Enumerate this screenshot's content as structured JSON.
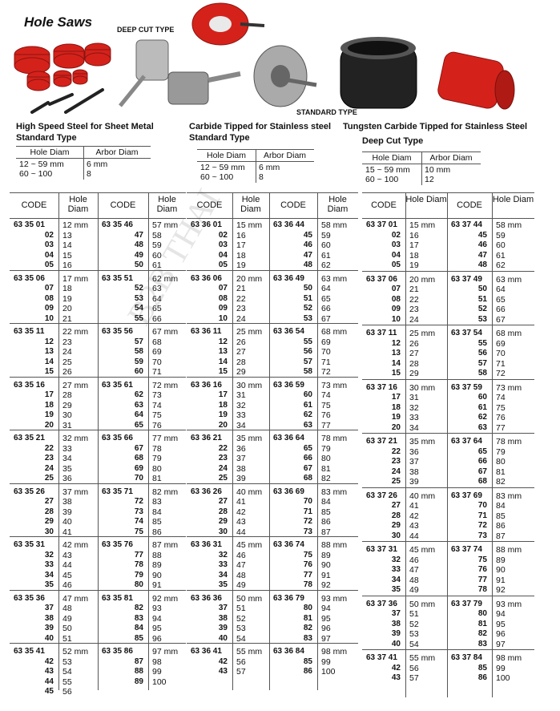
{
  "header": {
    "title": "Hole Saws"
  },
  "image_labels": {
    "deep_cut": "DEEP CUT TYPE",
    "standard": "STANDARD TYPE"
  },
  "watermark": "B2B THAI",
  "sections": [
    {
      "heading": [
        "High Speed Steel for Sheet Metal",
        "Standard Type"
      ],
      "spec": {
        "columns": [
          "Hole Diam",
          "Arbor Diam"
        ],
        "rows": [
          [
            "12 ~ 59 mm",
            "6 mm"
          ],
          [
            "60 ~ 100",
            "8"
          ]
        ]
      },
      "table": {
        "columns": [
          "CODE",
          "Hole Diam",
          "CODE",
          "Hole Diam"
        ],
        "groups": [
          [
            [
              "63 35 01",
              "12 mm",
              "63 35 46",
              "57 mm"
            ],
            [
              "02",
              "13",
              "47",
              "58"
            ],
            [
              "03",
              "14",
              "48",
              "59"
            ],
            [
              "04",
              "15",
              "49",
              "60"
            ],
            [
              "05",
              "16",
              "50",
              "61"
            ]
          ],
          [
            [
              "63 35 06",
              "17 mm",
              "63 35 51",
              "62 mm"
            ],
            [
              "07",
              "18",
              "52",
              "63"
            ],
            [
              "08",
              "19",
              "53",
              "64"
            ],
            [
              "09",
              "20",
              "54",
              "65"
            ],
            [
              "10",
              "21",
              "55",
              "66"
            ]
          ],
          [
            [
              "63 35 11",
              "22 mm",
              "63 35 56",
              "67 mm"
            ],
            [
              "12",
              "23",
              "57",
              "68"
            ],
            [
              "13",
              "24",
              "58",
              "69"
            ],
            [
              "14",
              "25",
              "59",
              "70"
            ],
            [
              "15",
              "26",
              "60",
              "71"
            ]
          ],
          [
            [
              "63 35 16",
              "27 mm",
              "63 35 61",
              "72 mm"
            ],
            [
              "17",
              "28",
              "62",
              "73"
            ],
            [
              "18",
              "29",
              "63",
              "74"
            ],
            [
              "19",
              "30",
              "64",
              "75"
            ],
            [
              "20",
              "31",
              "65",
              "76"
            ]
          ],
          [
            [
              "63 35 21",
              "32 mm",
              "63 35 66",
              "77 mm"
            ],
            [
              "22",
              "33",
              "67",
              "78"
            ],
            [
              "23",
              "34",
              "68",
              "79"
            ],
            [
              "24",
              "35",
              "69",
              "80"
            ],
            [
              "25",
              "36",
              "70",
              "81"
            ]
          ],
          [
            [
              "63 35 26",
              "37 mm",
              "63 35 71",
              "82 mm"
            ],
            [
              "27",
              "38",
              "72",
              "83"
            ],
            [
              "28",
              "39",
              "73",
              "84"
            ],
            [
              "29",
              "40",
              "74",
              "85"
            ],
            [
              "30",
              "41",
              "75",
              "86"
            ]
          ],
          [
            [
              "63 35 31",
              "42 mm",
              "63 35 76",
              "87 mm"
            ],
            [
              "32",
              "43",
              "77",
              "88"
            ],
            [
              "33",
              "44",
              "78",
              "89"
            ],
            [
              "34",
              "45",
              "79",
              "90"
            ],
            [
              "35",
              "46",
              "80",
              "91"
            ]
          ],
          [
            [
              "63 35 36",
              "47 mm",
              "63 35 81",
              "92 mm"
            ],
            [
              "37",
              "48",
              "82",
              "93"
            ],
            [
              "38",
              "49",
              "83",
              "94"
            ],
            [
              "39",
              "50",
              "84",
              "95"
            ],
            [
              "40",
              "51",
              "85",
              "96"
            ]
          ],
          [
            [
              "63 35 41",
              "52 mm",
              "63 35 86",
              "97 mm"
            ],
            [
              "42",
              "53",
              "87",
              "98"
            ],
            [
              "43",
              "54",
              "88",
              "99"
            ],
            [
              "44",
              "55",
              "89",
              "100"
            ],
            [
              "45",
              "56",
              null,
              null
            ]
          ]
        ]
      }
    },
    {
      "heading": [
        "Carbide Tipped for Stainless steel",
        "Standard Type"
      ],
      "spec": {
        "columns": [
          "Hole Diam",
          "Arbor Diam"
        ],
        "rows": [
          [
            "12 ~ 59 mm",
            "6 mm"
          ],
          [
            "60 ~ 100",
            "8"
          ]
        ]
      },
      "table": {
        "columns": [
          "CODE",
          "Hole Diam",
          "CODE",
          "Hole Diam"
        ],
        "groups": [
          [
            [
              "63 36 01",
              "15 mm",
              "63 36 44",
              "58 mm"
            ],
            [
              "02",
              "16",
              "45",
              "59"
            ],
            [
              "03",
              "17",
              "46",
              "60"
            ],
            [
              "04",
              "18",
              "47",
              "61"
            ],
            [
              "05",
              "19",
              "48",
              "62"
            ]
          ],
          [
            [
              "63 36 06",
              "20 mm",
              "63 36 49",
              "63 mm"
            ],
            [
              "07",
              "21",
              "50",
              "64"
            ],
            [
              "08",
              "22",
              "51",
              "65"
            ],
            [
              "09",
              "23",
              "52",
              "66"
            ],
            [
              "10",
              "24",
              "53",
              "67"
            ]
          ],
          [
            [
              "63 36 11",
              "25 mm",
              "63 36 54",
              "68 mm"
            ],
            [
              "12",
              "26",
              "55",
              "69"
            ],
            [
              "13",
              "27",
              "56",
              "70"
            ],
            [
              "14",
              "28",
              "57",
              "71"
            ],
            [
              "15",
              "29",
              "58",
              "72"
            ]
          ],
          [
            [
              "63 36 16",
              "30 mm",
              "63 36 59",
              "73 mm"
            ],
            [
              "17",
              "31",
              "60",
              "74"
            ],
            [
              "18",
              "32",
              "61",
              "75"
            ],
            [
              "19",
              "33",
              "62",
              "76"
            ],
            [
              "20",
              "34",
              "63",
              "77"
            ]
          ],
          [
            [
              "63 36 21",
              "35 mm",
              "63 36 64",
              "78 mm"
            ],
            [
              "22",
              "36",
              "65",
              "79"
            ],
            [
              "23",
              "37",
              "66",
              "80"
            ],
            [
              "24",
              "38",
              "67",
              "81"
            ],
            [
              "25",
              "39",
              "68",
              "82"
            ]
          ],
          [
            [
              "63 36 26",
              "40 mm",
              "63 36 69",
              "83 mm"
            ],
            [
              "27",
              "41",
              "70",
              "84"
            ],
            [
              "28",
              "42",
              "71",
              "85"
            ],
            [
              "29",
              "43",
              "72",
              "86"
            ],
            [
              "30",
              "44",
              "73",
              "87"
            ]
          ],
          [
            [
              "63 36 31",
              "45 mm",
              "63 36 74",
              "88 mm"
            ],
            [
              "32",
              "46",
              "75",
              "89"
            ],
            [
              "33",
              "47",
              "76",
              "90"
            ],
            [
              "34",
              "48",
              "77",
              "91"
            ],
            [
              "35",
              "49",
              "78",
              "92"
            ]
          ],
          [
            [
              "63 36 36",
              "50 mm",
              "63 36 79",
              "93 mm"
            ],
            [
              "37",
              "51",
              "80",
              "94"
            ],
            [
              "38",
              "52",
              "81",
              "95"
            ],
            [
              "39",
              "53",
              "82",
              "96"
            ],
            [
              "40",
              "54",
              "83",
              "97"
            ]
          ],
          [
            [
              "63 36 41",
              "55 mm",
              "63 36 84",
              "98 mm"
            ],
            [
              "42",
              "56",
              "85",
              "99"
            ],
            [
              "43",
              "57",
              "86",
              "100"
            ]
          ]
        ]
      }
    },
    {
      "heading": [
        "Tungsten Carbide Tipped for Stainless Steel",
        "Deep Cut Type"
      ],
      "spec": {
        "columns": [
          "Hole Diam",
          "Arbor Diam"
        ],
        "rows": [
          [
            "15 ~ 59 mm",
            "10 mm"
          ],
          [
            "60 ~ 100",
            "12"
          ]
        ]
      },
      "table": {
        "columns": [
          "CODE",
          "Hole Diam",
          "CODE",
          "Hole Diam"
        ],
        "groups": [
          [
            [
              "63 37 01",
              "15 mm",
              "63 37 44",
              "58 mm"
            ],
            [
              "02",
              "16",
              "45",
              "59"
            ],
            [
              "03",
              "17",
              "46",
              "60"
            ],
            [
              "04",
              "18",
              "47",
              "61"
            ],
            [
              "05",
              "19",
              "48",
              "62"
            ]
          ],
          [
            [
              "63 37 06",
              "20 mm",
              "63 37 49",
              "63 mm"
            ],
            [
              "07",
              "21",
              "50",
              "64"
            ],
            [
              "08",
              "22",
              "51",
              "65"
            ],
            [
              "09",
              "23",
              "52",
              "66"
            ],
            [
              "10",
              "24",
              "53",
              "67"
            ]
          ],
          [
            [
              "63 37 11",
              "25 mm",
              "63 37 54",
              "68 mm"
            ],
            [
              "12",
              "26",
              "55",
              "69"
            ],
            [
              "13",
              "27",
              "56",
              "70"
            ],
            [
              "14",
              "28",
              "57",
              "71"
            ],
            [
              "15",
              "29",
              "58",
              "72"
            ]
          ],
          [
            [
              "63 37 16",
              "30 mm",
              "63 37 59",
              "73 mm"
            ],
            [
              "17",
              "31",
              "60",
              "74"
            ],
            [
              "18",
              "32",
              "61",
              "75"
            ],
            [
              "19",
              "33",
              "62",
              "76"
            ],
            [
              "20",
              "34",
              "63",
              "77"
            ]
          ],
          [
            [
              "63 37 21",
              "35 mm",
              "63 37 64",
              "78 mm"
            ],
            [
              "22",
              "36",
              "65",
              "79"
            ],
            [
              "23",
              "37",
              "66",
              "80"
            ],
            [
              "24",
              "38",
              "67",
              "81"
            ],
            [
              "25",
              "39",
              "68",
              "82"
            ]
          ],
          [
            [
              "63 37 26",
              "40 mm",
              "63 37 69",
              "83 mm"
            ],
            [
              "27",
              "41",
              "70",
              "84"
            ],
            [
              "28",
              "42",
              "71",
              "85"
            ],
            [
              "29",
              "43",
              "72",
              "86"
            ],
            [
              "30",
              "44",
              "73",
              "87"
            ]
          ],
          [
            [
              "63 37 31",
              "45 mm",
              "63 37 74",
              "88 mm"
            ],
            [
              "32",
              "46",
              "75",
              "89"
            ],
            [
              "33",
              "47",
              "76",
              "90"
            ],
            [
              "34",
              "48",
              "77",
              "91"
            ],
            [
              "35",
              "49",
              "78",
              "92"
            ]
          ],
          [
            [
              "63 37 36",
              "50 mm",
              "63 37 79",
              "93 mm"
            ],
            [
              "37",
              "51",
              "80",
              "94"
            ],
            [
              "38",
              "52",
              "81",
              "95"
            ],
            [
              "39",
              "53",
              "82",
              "96"
            ],
            [
              "40",
              "54",
              "83",
              "97"
            ]
          ],
          [
            [
              "63 37 41",
              "55 mm",
              "63 37 84",
              "98 mm"
            ],
            [
              "42",
              "56",
              "85",
              "99"
            ],
            [
              "43",
              "57",
              "86",
              "100"
            ]
          ]
        ]
      }
    }
  ]
}
